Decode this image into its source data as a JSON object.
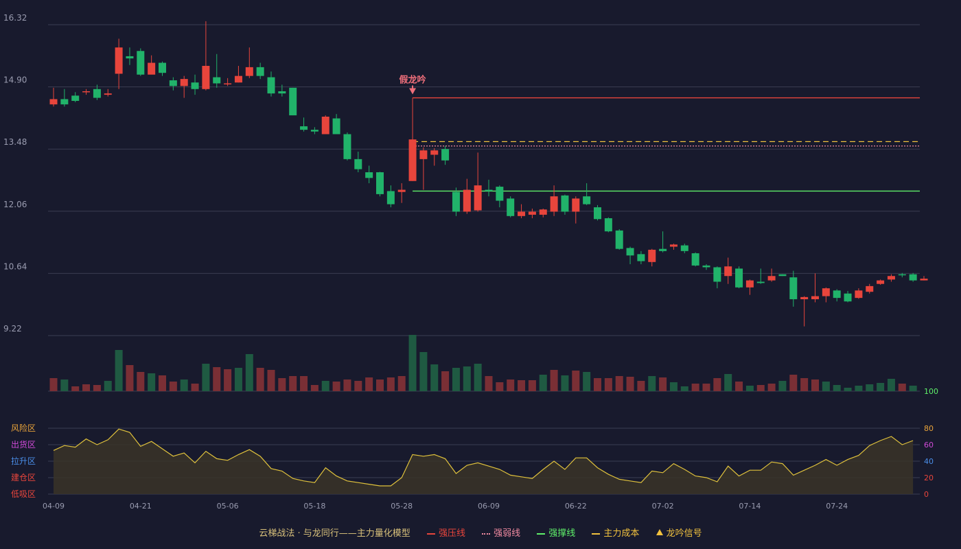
{
  "legend": {
    "title": "云梯战法 · 与龙同行——主力量化模型",
    "items": [
      {
        "label": "强压线",
        "color": "#e8453c",
        "style": "solid"
      },
      {
        "label": "强弱线",
        "color": "#f08aa0",
        "style": "dotted"
      },
      {
        "label": "强撑线",
        "color": "#5ff06a",
        "style": "solid"
      },
      {
        "label": "主力成本",
        "color": "#f2c23e",
        "style": "dashed"
      },
      {
        "label": "龙吟信号",
        "color": "#f2c23e",
        "style": "triangle"
      }
    ]
  },
  "colors": {
    "up": "#e8453c",
    "down": "#21b36a",
    "volume_up": "#7a2f35",
    "volume_down": "#1f5a42",
    "oscillator": "#e0c23c",
    "grid": "#3a3d52",
    "axis_text": "#9a9cb0"
  },
  "chart_data": [
    {
      "type": "candlestick",
      "panel": "price",
      "y_ticks": [
        9.22,
        10.64,
        12.06,
        13.48,
        14.9,
        16.32
      ],
      "ylim": [
        9.22,
        16.32
      ],
      "x_tick_labels": [
        "04-09",
        "04-21",
        "05-06",
        "05-18",
        "05-28",
        "06-09",
        "06-22",
        "07-02",
        "07-14",
        "07-24"
      ],
      "x_tick_index": [
        0,
        8,
        16,
        24,
        32,
        40,
        48,
        56,
        64,
        72
      ],
      "series": [
        [
          14.5,
          14.62,
          14.88,
          14.45
        ],
        [
          14.62,
          14.5,
          14.85,
          14.45
        ],
        [
          14.7,
          14.58,
          14.78,
          14.55
        ],
        [
          14.8,
          14.8,
          14.85,
          14.72
        ],
        [
          14.85,
          14.65,
          14.95,
          14.6
        ],
        [
          14.72,
          14.75,
          14.85,
          14.68
        ],
        [
          15.2,
          15.8,
          16.0,
          14.85
        ],
        [
          15.6,
          15.55,
          15.8,
          15.4
        ],
        [
          15.72,
          15.18,
          15.78,
          15.15
        ],
        [
          15.18,
          15.45,
          15.62,
          15.2
        ],
        [
          15.45,
          15.22,
          15.48,
          15.15
        ],
        [
          15.05,
          14.92,
          15.12,
          14.82
        ],
        [
          14.92,
          15.08,
          15.15,
          14.65
        ],
        [
          15.0,
          14.85,
          15.18,
          14.72
        ],
        [
          14.85,
          15.38,
          16.4,
          14.82
        ],
        [
          15.12,
          14.98,
          15.65,
          14.88
        ],
        [
          14.98,
          14.98,
          15.1,
          14.92
        ],
        [
          15.0,
          15.15,
          15.38,
          15.0
        ],
        [
          15.15,
          15.35,
          15.8,
          15.1
        ],
        [
          15.35,
          15.15,
          15.45,
          15.08
        ],
        [
          15.12,
          14.75,
          15.25,
          14.68
        ],
        [
          14.8,
          14.75,
          14.95,
          14.68
        ],
        [
          14.88,
          14.25,
          14.88,
          14.25
        ],
        [
          14.0,
          13.92,
          14.2,
          13.88
        ],
        [
          13.92,
          13.88,
          13.98,
          13.82
        ],
        [
          13.82,
          14.22,
          14.25,
          13.82
        ],
        [
          14.18,
          13.82,
          14.28,
          13.82
        ],
        [
          13.82,
          13.25,
          13.86,
          13.22
        ],
        [
          13.25,
          13.02,
          13.42,
          12.95
        ],
        [
          12.95,
          12.82,
          13.1,
          12.7
        ],
        [
          12.95,
          12.45,
          12.96,
          12.4
        ],
        [
          12.52,
          12.22,
          12.65,
          12.15
        ],
        [
          12.5,
          12.55,
          12.7,
          12.25
        ],
        [
          12.75,
          13.7,
          14.65,
          12.75
        ],
        [
          13.25,
          13.45,
          13.52,
          12.55
        ],
        [
          13.35,
          13.45,
          13.5,
          13.1
        ],
        [
          13.48,
          13.22,
          13.55,
          13.12
        ],
        [
          12.5,
          12.05,
          12.6,
          11.95
        ],
        [
          12.05,
          12.55,
          12.8,
          12.0
        ],
        [
          12.08,
          12.65,
          13.4,
          12.05
        ],
        [
          12.55,
          12.52,
          12.78,
          12.4
        ],
        [
          12.62,
          12.3,
          12.65,
          12.15
        ],
        [
          12.35,
          11.95,
          12.4,
          11.92
        ],
        [
          11.95,
          12.05,
          12.22,
          11.9
        ],
        [
          11.98,
          12.05,
          12.12,
          11.9
        ],
        [
          11.98,
          12.1,
          12.12,
          11.92
        ],
        [
          12.05,
          12.4,
          12.65,
          11.95
        ],
        [
          12.42,
          12.05,
          12.44,
          11.98
        ],
        [
          12.05,
          12.35,
          12.4,
          11.78
        ],
        [
          12.4,
          12.22,
          12.7,
          12.2
        ],
        [
          12.15,
          11.88,
          12.2,
          11.85
        ],
        [
          11.9,
          11.6,
          11.92,
          11.58
        ],
        [
          11.62,
          11.2,
          11.65,
          11.18
        ],
        [
          11.22,
          11.05,
          11.25,
          10.85
        ],
        [
          11.08,
          10.92,
          11.15,
          10.85
        ],
        [
          10.9,
          11.18,
          11.2,
          10.8
        ],
        [
          11.2,
          11.15,
          11.6,
          11.12
        ],
        [
          11.25,
          11.3,
          11.32,
          11.18
        ],
        [
          11.28,
          11.15,
          11.32,
          11.1
        ],
        [
          11.1,
          10.82,
          11.12,
          10.8
        ],
        [
          10.82,
          10.78,
          10.85,
          10.72
        ],
        [
          10.78,
          10.45,
          10.8,
          10.3
        ],
        [
          10.58,
          10.8,
          11.0,
          10.4
        ],
        [
          10.75,
          10.32,
          10.8,
          10.3
        ],
        [
          10.32,
          10.48,
          10.5,
          10.15
        ],
        [
          10.45,
          10.42,
          10.75,
          10.4
        ],
        [
          10.48,
          10.58,
          10.75,
          10.45
        ],
        [
          10.62,
          10.58,
          10.62,
          10.58
        ],
        [
          10.55,
          10.05,
          10.7,
          9.88
        ],
        [
          10.05,
          10.1,
          10.12,
          9.43
        ],
        [
          10.05,
          10.12,
          10.64,
          9.98
        ],
        [
          10.12,
          10.3,
          10.32,
          9.98
        ],
        [
          10.25,
          10.08,
          10.28,
          10.0
        ],
        [
          10.18,
          10.0,
          10.24,
          9.98
        ],
        [
          10.08,
          10.25,
          10.3,
          10.06
        ],
        [
          10.22,
          10.35,
          10.4,
          10.18
        ],
        [
          10.4,
          10.48,
          10.5,
          10.38
        ],
        [
          10.5,
          10.58,
          10.62,
          10.45
        ],
        [
          10.62,
          10.6,
          10.65,
          10.55
        ],
        [
          10.62,
          10.48,
          10.65,
          10.45
        ],
        [
          10.48,
          10.52,
          10.58,
          10.48
        ]
      ],
      "lines": [
        {
          "name": "强压线",
          "value": 14.65,
          "from_index": 33,
          "color": "#e8453c",
          "style": "solid"
        },
        {
          "name": "主力成本",
          "value": 13.65,
          "from_index": 33,
          "color": "#f2c23e",
          "style": "dashed"
        },
        {
          "name": "强弱线",
          "value": 13.55,
          "from_index": 33,
          "color": "#f08aa0",
          "style": "dotted"
        },
        {
          "name": "强撑线",
          "value": 12.52,
          "from_index": 33,
          "color": "#5ff06a",
          "style": "solid"
        }
      ],
      "annotations": [
        {
          "text": "假龙吟",
          "index": 33,
          "price": 14.65,
          "color": "#ef6f7b"
        }
      ]
    },
    {
      "type": "bar",
      "panel": "volume",
      "values": [
        19,
        17,
        7,
        10,
        9,
        15,
        60,
        38,
        28,
        26,
        23,
        14,
        17,
        11,
        40,
        35,
        32,
        34,
        54,
        34,
        31,
        19,
        22,
        22,
        9,
        15,
        14,
        17,
        15,
        20,
        17,
        20,
        22,
        82,
        57,
        39,
        29,
        34,
        36,
        40,
        22,
        13,
        17,
        16,
        16,
        24,
        31,
        23,
        30,
        28,
        19,
        19,
        22,
        21,
        15,
        22,
        20,
        13,
        7,
        11,
        11,
        19,
        25,
        14,
        8,
        9,
        11,
        15,
        24,
        19,
        17,
        14,
        9,
        5,
        8,
        10,
        12,
        18,
        11,
        8
      ],
      "directions": [
        1,
        -1,
        1,
        1,
        1,
        -1,
        -1,
        1,
        1,
        -1,
        1,
        1,
        -1,
        1,
        -1,
        1,
        1,
        -1,
        -1,
        1,
        1,
        1,
        1,
        1,
        1,
        -1,
        1,
        1,
        1,
        1,
        1,
        1,
        1,
        -1,
        -1,
        -1,
        1,
        -1,
        -1,
        -1,
        1,
        1,
        1,
        1,
        1,
        -1,
        1,
        -1,
        1,
        -1,
        1,
        1,
        1,
        1,
        1,
        -1,
        1,
        -1,
        -1,
        1,
        1,
        1,
        -1,
        1,
        -1,
        1,
        1,
        -1,
        1,
        1,
        1,
        -1,
        -1,
        -1,
        -1,
        -1,
        -1,
        -1,
        1,
        -1
      ],
      "right_axis_label": "100",
      "right_axis_color": "#5ff06a"
    },
    {
      "type": "area",
      "panel": "oscillator",
      "ylim": [
        0,
        100
      ],
      "right_ticks": [
        {
          "value": 80,
          "color": "#e8a33a"
        },
        {
          "value": 60,
          "color": "#d04ad8"
        },
        {
          "value": 40,
          "color": "#4a8ee8"
        },
        {
          "value": 20,
          "color": "#e8453c"
        },
        {
          "value": 0,
          "color": "#e8453c"
        }
      ],
      "zones": [
        {
          "label": "风险区",
          "color": "#e8a33a"
        },
        {
          "label": "出货区",
          "color": "#d04ad8"
        },
        {
          "label": "拉升区",
          "color": "#4a8ee8"
        },
        {
          "label": "建仓区",
          "color": "#e8453c"
        },
        {
          "label": "低吸区",
          "color": "#e8453c"
        }
      ],
      "values": [
        53,
        59,
        57,
        67,
        60,
        66,
        79,
        75,
        58,
        64,
        55,
        46,
        50,
        38,
        52,
        43,
        41,
        48,
        54,
        46,
        31,
        28,
        19,
        16,
        14,
        32,
        22,
        16,
        14,
        12,
        10,
        10,
        20,
        48,
        46,
        48,
        43,
        25,
        35,
        38,
        34,
        30,
        23,
        21,
        19,
        30,
        40,
        30,
        44,
        44,
        32,
        24,
        18,
        16,
        14,
        28,
        26,
        37,
        30,
        22,
        20,
        15,
        34,
        22,
        29,
        29,
        39,
        37,
        23,
        29,
        35,
        42,
        35,
        42,
        47,
        59,
        65,
        70,
        60,
        65
      ]
    }
  ]
}
